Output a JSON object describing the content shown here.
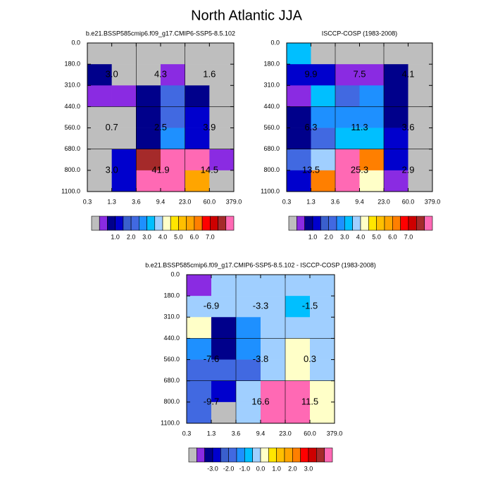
{
  "title": "North Atlantic JJA",
  "chart_data": [
    {
      "type": "heatmap",
      "title": "b.e21.BSSP585cmip6.f09_g17.CMIP6-SSP5-8.5.102",
      "xedges": [
        "0.3",
        "1.3",
        "3.6",
        "9.4",
        "23.0",
        "60.0",
        "379.0"
      ],
      "yedges": [
        "0.0",
        "180.0",
        "310.0",
        "440.0",
        "560.0",
        "680.0",
        "800.0",
        "1100.0"
      ],
      "values": [
        [
          0,
          0,
          0,
          0,
          0,
          0
        ],
        [
          0.8,
          0,
          0,
          0.4,
          0,
          0
        ],
        [
          0.4,
          0.4,
          0.8,
          2.2,
          0.8,
          0
        ],
        [
          0,
          0,
          0.8,
          2.2,
          1.2,
          0
        ],
        [
          0,
          0,
          0.8,
          2.8,
          1.2,
          0
        ],
        [
          0,
          1.2,
          7.8,
          10,
          10,
          0.4
        ],
        [
          0,
          1.2,
          10,
          10,
          5.8,
          0
        ]
      ],
      "colors": [
        "#bebebe",
        "#8a2be2",
        "#00008b",
        "#0000cd",
        "#3a5fcd",
        "#4169e1",
        "#1e90ff",
        "#00bfff",
        "#a0cfff",
        "#ffffc8",
        "#ffe600",
        "#ffbf00",
        "#ffa500",
        "#ff7f00",
        "#ff0000",
        "#cd0000",
        "#a52a2a",
        "#ff69b4"
      ],
      "levels": [
        0.2,
        0.5,
        1,
        1.5,
        2,
        2.5,
        3,
        3.5,
        4,
        4.5,
        5,
        5.5,
        6,
        6.5,
        7,
        7.5,
        8
      ],
      "colorbar_ticks": [
        {
          "value": 1,
          "label": "1.0"
        },
        {
          "value": 2,
          "label": "2.0"
        },
        {
          "value": 3,
          "label": "3.0"
        },
        {
          "value": 4,
          "label": "4.0"
        },
        {
          "value": 5,
          "label": "5.0"
        },
        {
          "value": 6,
          "label": "6.0"
        },
        {
          "value": 7,
          "label": "7.0"
        }
      ],
      "annotations": {
        "values": [
          [
            3,
            4.3,
            1.6
          ],
          [
            0.7,
            2.5,
            3.9
          ],
          [
            3,
            41.9,
            14.5
          ]
        ],
        "value_labels": [
          [
            "3.0",
            "4.3",
            "1.6"
          ],
          [
            "0.7",
            "2.5",
            "3.9"
          ],
          [
            "3.0",
            "41.9",
            "14.5"
          ]
        ]
      }
    },
    {
      "type": "heatmap",
      "title": "ISCCP-COSP (1983-2008)",
      "xedges": [
        "0.3",
        "1.3",
        "3.6",
        "9.4",
        "23.0",
        "60.0",
        "379.0"
      ],
      "yedges": [
        "0.0",
        "180.0",
        "310.0",
        "440.0",
        "560.0",
        "680.0",
        "800.0",
        "1100.0"
      ],
      "values": [
        [
          3.2,
          0,
          0,
          0,
          0,
          0
        ],
        [
          1.2,
          1.2,
          0.4,
          0.4,
          0.8,
          0
        ],
        [
          0.4,
          3.2,
          2.2,
          2.8,
          0.8,
          0
        ],
        [
          0.8,
          2.8,
          2.8,
          2.8,
          0.8,
          0
        ],
        [
          0.8,
          2.2,
          3.2,
          3.2,
          1.2,
          0
        ],
        [
          2.2,
          3.8,
          10,
          6.2,
          1.2,
          0
        ],
        [
          1.2,
          6.2,
          10,
          4.2,
          0.4,
          0
        ]
      ],
      "colors": [
        "#bebebe",
        "#8a2be2",
        "#00008b",
        "#0000cd",
        "#3a5fcd",
        "#4169e1",
        "#1e90ff",
        "#00bfff",
        "#a0cfff",
        "#ffffc8",
        "#ffe600",
        "#ffbf00",
        "#ffa500",
        "#ff7f00",
        "#ff0000",
        "#cd0000",
        "#a52a2a",
        "#ff69b4"
      ],
      "levels": [
        0.2,
        0.5,
        1,
        1.5,
        2,
        2.5,
        3,
        3.5,
        4,
        4.5,
        5,
        5.5,
        6,
        6.5,
        7,
        7.5,
        8
      ],
      "colorbar_ticks": [
        {
          "value": 1,
          "label": "1.0"
        },
        {
          "value": 2,
          "label": "2.0"
        },
        {
          "value": 3,
          "label": "3.0"
        },
        {
          "value": 4,
          "label": "4.0"
        },
        {
          "value": 5,
          "label": "5.0"
        },
        {
          "value": 6,
          "label": "6.0"
        },
        {
          "value": 7,
          "label": "7.0"
        }
      ],
      "annotations": {
        "values": [
          [
            9.9,
            7.5,
            4.1
          ],
          [
            6.3,
            11.3,
            3.6
          ],
          [
            13.5,
            25.3,
            2.9
          ]
        ],
        "value_labels": [
          [
            "9.9",
            "7.5",
            "4.1"
          ],
          [
            "6.3",
            "11.3",
            "3.6"
          ],
          [
            "13.5",
            "25.3",
            "2.9"
          ]
        ]
      }
    },
    {
      "type": "heatmap",
      "title": "b.e21.BSSP585cmip6.f09_g17.CMIP6-SSP5-8.5.102 - ISCCP-COSP (1983-2008)",
      "xedges": [
        "0.3",
        "1.3",
        "3.6",
        "9.4",
        "23.0",
        "60.0",
        "379.0"
      ],
      "yedges": [
        "0.0",
        "180.0",
        "310.0",
        "440.0",
        "560.0",
        "680.0",
        "800.0",
        "1100.0"
      ],
      "values": [
        [
          -4.5,
          -0.2,
          -0.2,
          -0.2,
          -0.2,
          -0.2
        ],
        [
          -0.2,
          -0.2,
          -0.2,
          -0.2,
          -0.8,
          -0.2
        ],
        [
          0.2,
          -3.5,
          -1.2,
          -0.2,
          -0.2,
          -0.2
        ],
        [
          -1.2,
          -3.5,
          -1.2,
          -0.2,
          0.2,
          -0.2
        ],
        [
          -1.8,
          -1.8,
          -1.8,
          -0.2,
          0.2,
          -0.2
        ],
        [
          -1.8,
          -2.8,
          -0.2,
          6,
          6,
          0.2
        ],
        [
          -1.8,
          -5.2,
          -0.2,
          6,
          6,
          0.2
        ]
      ],
      "colors": [
        "#bebebe",
        "#8a2be2",
        "#00008b",
        "#0000cd",
        "#3a5fcd",
        "#4169e1",
        "#1e90ff",
        "#00bfff",
        "#a0cfff",
        "#ffffc8",
        "#ffe600",
        "#ffbf00",
        "#ffa500",
        "#ff7f00",
        "#ff0000",
        "#cd0000",
        "#a52a2a",
        "#ff69b4"
      ],
      "levels": [
        -5,
        -4,
        -3,
        -2.5,
        -2,
        -1.5,
        -1,
        -0.5,
        0,
        0.5,
        1,
        1.5,
        2,
        2.5,
        3,
        4,
        5
      ],
      "colorbar_ticks": [
        {
          "value": -3,
          "label": "-3.0"
        },
        {
          "value": -2,
          "label": "-2.0"
        },
        {
          "value": -1,
          "label": "-1.0"
        },
        {
          "value": 0,
          "label": "0.0"
        },
        {
          "value": 1,
          "label": "1.0"
        },
        {
          "value": 2,
          "label": "2.0"
        },
        {
          "value": 3,
          "label": "3.0"
        }
      ],
      "annotations": {
        "values": [
          [
            -6.9,
            -3.3,
            -1.5
          ],
          [
            -7.6,
            -3.8,
            0.3
          ],
          [
            -9.7,
            16.6,
            11.5
          ]
        ],
        "value_labels": [
          [
            "-6.9",
            "-3.3",
            "-1.5"
          ],
          [
            "-7.6",
            "-3.8",
            "0.3"
          ],
          [
            "-9.7",
            "16.6",
            "11.5"
          ]
        ]
      }
    }
  ]
}
